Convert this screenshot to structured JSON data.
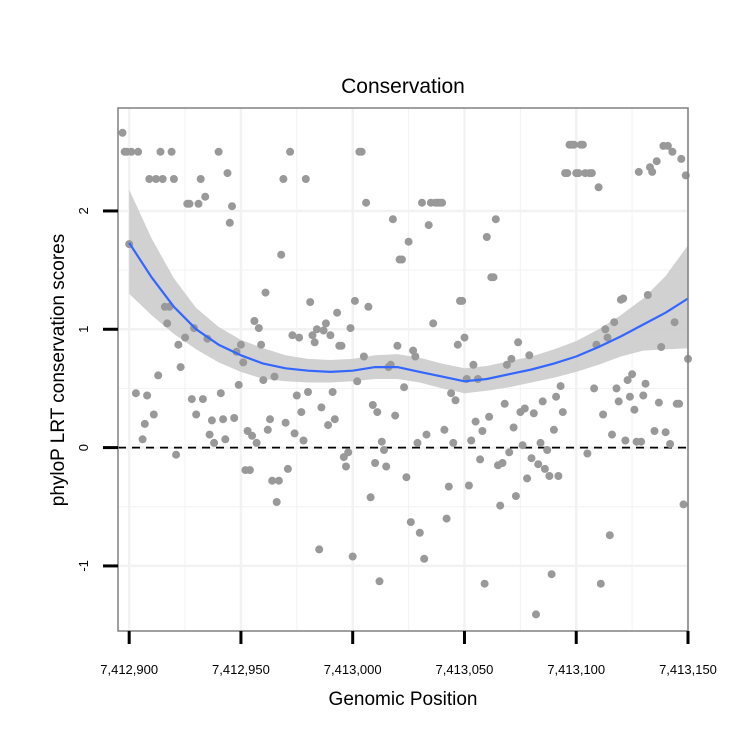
{
  "chart_data": {
    "type": "scatter",
    "title": "Conservation",
    "xlabel": "Genomic Position",
    "ylabel": "phyloP LRT conservation scores",
    "xlim": [
      7412895,
      7413150
    ],
    "ylim": [
      -1.55,
      2.87
    ],
    "x_ticks": [
      7412900,
      7412950,
      7413000,
      7413050,
      7413100,
      7413150
    ],
    "x_tick_labels": [
      "7,412,900",
      "7,412,950",
      "7,413,000",
      "7,413,050",
      "7,413,100",
      "7,413,150"
    ],
    "y_ticks": [
      -1,
      0,
      1,
      2
    ],
    "y_tick_labels": [
      "-1",
      "0",
      "1",
      "2"
    ],
    "grid": true,
    "reference_line": {
      "y": 0,
      "style": "dashed",
      "color": "#000000"
    },
    "colors": {
      "points": "#999999",
      "smooth": "#3366ff",
      "band": "#cccccc",
      "panel_border": "#808080",
      "grid": "#f2f2f2"
    },
    "series": [
      {
        "name": "scores",
        "kind": "points",
        "points": [
          [
            7412897,
            2.66
          ],
          [
            7412898,
            2.5
          ],
          [
            7412899,
            2.5
          ],
          [
            7412900,
            1.72
          ],
          [
            7412901,
            2.5
          ],
          [
            7412903,
            0.46
          ],
          [
            7412904,
            2.5
          ],
          [
            7412906,
            0.07
          ],
          [
            7412907,
            0.2
          ],
          [
            7412908,
            0.44
          ],
          [
            7412909,
            2.27
          ],
          [
            7412911,
            0.28
          ],
          [
            7412912,
            2.27
          ],
          [
            7412913,
            0.61
          ],
          [
            7412914,
            2.5
          ],
          [
            7412915,
            2.27
          ],
          [
            7412916,
            1.19
          ],
          [
            7412917,
            1.05
          ],
          [
            7412918,
            1.19
          ],
          [
            7412919,
            2.5
          ],
          [
            7412920,
            2.27
          ],
          [
            7412921,
            -0.06
          ],
          [
            7412922,
            0.87
          ],
          [
            7412923,
            0.68
          ],
          [
            7412925,
            0.93
          ],
          [
            7412926,
            2.06
          ],
          [
            7412927,
            2.06
          ],
          [
            7412928,
            0.41
          ],
          [
            7412929,
            1.01
          ],
          [
            7412930,
            0.28
          ],
          [
            7412931,
            2.06
          ],
          [
            7412932,
            2.27
          ],
          [
            7412933,
            0.41
          ],
          [
            7412934,
            2.12
          ],
          [
            7412935,
            0.92
          ],
          [
            7412936,
            0.11
          ],
          [
            7412937,
            0.23
          ],
          [
            7412938,
            0.04
          ],
          [
            7412940,
            2.5
          ],
          [
            7412941,
            0.46
          ],
          [
            7412942,
            0.24
          ],
          [
            7412943,
            0.07
          ],
          [
            7412944,
            2.32
          ],
          [
            7412945,
            1.9
          ],
          [
            7412946,
            2.04
          ],
          [
            7412947,
            0.25
          ],
          [
            7412948,
            0.81
          ],
          [
            7412949,
            0.53
          ],
          [
            7412950,
            0.87
          ],
          [
            7412951,
            0.72
          ],
          [
            7412952,
            -0.19
          ],
          [
            7412953,
            0.14
          ],
          [
            7412954,
            -0.19
          ],
          [
            7412955,
            0.1
          ],
          [
            7412956,
            1.07
          ],
          [
            7412957,
            0.04
          ],
          [
            7412958,
            1.01
          ],
          [
            7412959,
            0.87
          ],
          [
            7412960,
            0.57
          ],
          [
            7412961,
            1.31
          ],
          [
            7412962,
            0.15
          ],
          [
            7412963,
            0.24
          ],
          [
            7412964,
            -0.28
          ],
          [
            7412965,
            0.6
          ],
          [
            7412966,
            -0.46
          ],
          [
            7412967,
            -0.28
          ],
          [
            7412968,
            1.63
          ],
          [
            7412969,
            2.27
          ],
          [
            7412970,
            0.21
          ],
          [
            7412971,
            -0.18
          ],
          [
            7412972,
            2.5
          ],
          [
            7412973,
            0.95
          ],
          [
            7412974,
            0.12
          ],
          [
            7412975,
            0.44
          ],
          [
            7412976,
            0.93
          ],
          [
            7412977,
            0.3
          ],
          [
            7412978,
            0.06
          ],
          [
            7412979,
            2.27
          ],
          [
            7412980,
            0.47
          ],
          [
            7412981,
            1.23
          ],
          [
            7412982,
            0.95
          ],
          [
            7412983,
            0.89
          ],
          [
            7412984,
            1.0
          ],
          [
            7412985,
            -0.86
          ],
          [
            7412986,
            0.34
          ],
          [
            7412987,
            0.99
          ],
          [
            7412988,
            1.05
          ],
          [
            7412989,
            0.19
          ],
          [
            7412990,
            0.95
          ],
          [
            7412991,
            0.47
          ],
          [
            7412992,
            0.24
          ],
          [
            7412993,
            1.14
          ],
          [
            7412994,
            0.86
          ],
          [
            7412995,
            0.86
          ],
          [
            7412996,
            -0.08
          ],
          [
            7412997,
            -0.16
          ],
          [
            7412998,
            -0.04
          ],
          [
            7412999,
            1.01
          ],
          [
            7413000,
            -0.92
          ],
          [
            7413001,
            1.24
          ],
          [
            7413002,
            0.56
          ],
          [
            7413003,
            2.5
          ],
          [
            7413004,
            2.5
          ],
          [
            7413005,
            0.77
          ],
          [
            7413006,
            2.07
          ],
          [
            7413007,
            1.19
          ],
          [
            7413008,
            -0.42
          ],
          [
            7413009,
            0.36
          ],
          [
            7413010,
            -0.13
          ],
          [
            7413011,
            0.3
          ],
          [
            7413012,
            -1.13
          ],
          [
            7413013,
            0.05
          ],
          [
            7413014,
            -0.02
          ],
          [
            7413015,
            -0.16
          ],
          [
            7413016,
            0.68
          ],
          [
            7413017,
            0.7
          ],
          [
            7413018,
            1.93
          ],
          [
            7413019,
            0.27
          ],
          [
            7413020,
            0.86
          ],
          [
            7413021,
            1.59
          ],
          [
            7413022,
            1.59
          ],
          [
            7413023,
            0.51
          ],
          [
            7413024,
            -0.25
          ],
          [
            7413025,
            1.74
          ],
          [
            7413026,
            -0.63
          ],
          [
            7413027,
            0.82
          ],
          [
            7413028,
            0.77
          ],
          [
            7413029,
            0.04
          ],
          [
            7413030,
            -0.72
          ],
          [
            7413031,
            2.07
          ],
          [
            7413032,
            -0.94
          ],
          [
            7413033,
            0.11
          ],
          [
            7413034,
            1.88
          ],
          [
            7413035,
            2.07
          ],
          [
            7413036,
            1.05
          ],
          [
            7413037,
            2.07
          ],
          [
            7413038,
            2.07
          ],
          [
            7413039,
            2.07
          ],
          [
            7413040,
            2.07
          ],
          [
            7413041,
            0.15
          ],
          [
            7413042,
            -0.6
          ],
          [
            7413043,
            -0.33
          ],
          [
            7413044,
            0.46
          ],
          [
            7413045,
            0.04
          ],
          [
            7413046,
            0.4
          ],
          [
            7413047,
            0.87
          ],
          [
            7413048,
            1.24
          ],
          [
            7413049,
            1.24
          ],
          [
            7413050,
            0.93
          ],
          [
            7413051,
            0.58
          ],
          [
            7413052,
            -0.32
          ],
          [
            7413053,
            0.06
          ],
          [
            7413054,
            0.7
          ],
          [
            7413055,
            0.22
          ],
          [
            7413056,
            0.58
          ],
          [
            7413057,
            -0.1
          ],
          [
            7413058,
            0.14
          ],
          [
            7413059,
            -1.15
          ],
          [
            7413060,
            1.78
          ],
          [
            7413061,
            0.26
          ],
          [
            7413062,
            1.44
          ],
          [
            7413063,
            1.44
          ],
          [
            7413064,
            1.93
          ],
          [
            7413065,
            -0.15
          ],
          [
            7413066,
            -0.49
          ],
          [
            7413067,
            -0.13
          ],
          [
            7413068,
            0.37
          ],
          [
            7413069,
            0.7
          ],
          [
            7413070,
            -0.04
          ],
          [
            7413071,
            0.75
          ],
          [
            7413072,
            0.17
          ],
          [
            7413073,
            -0.41
          ],
          [
            7413074,
            0.89
          ],
          [
            7413075,
            0.3
          ],
          [
            7413076,
            0.02
          ],
          [
            7413077,
            0.33
          ],
          [
            7413078,
            -0.26
          ],
          [
            7413079,
            0.78
          ],
          [
            7413080,
            -0.09
          ],
          [
            7413081,
            0.29
          ],
          [
            7413082,
            -1.41
          ],
          [
            7413083,
            -0.14
          ],
          [
            7413084,
            0.04
          ],
          [
            7413085,
            0.39
          ],
          [
            7413086,
            -0.18
          ],
          [
            7413087,
            -0.02
          ],
          [
            7413088,
            -0.24
          ],
          [
            7413089,
            -1.07
          ],
          [
            7413090,
            0.15
          ],
          [
            7413091,
            0.43
          ],
          [
            7413092,
            -0.24
          ],
          [
            7413093,
            0.52
          ],
          [
            7413094,
            0.3
          ],
          [
            7413095,
            2.32
          ],
          [
            7413096,
            2.32
          ],
          [
            7413097,
            2.56
          ],
          [
            7413098,
            2.56
          ],
          [
            7413099,
            2.56
          ],
          [
            7413100,
            2.32
          ],
          [
            7413101,
            2.32
          ],
          [
            7413102,
            2.56
          ],
          [
            7413103,
            2.56
          ],
          [
            7413104,
            2.32
          ],
          [
            7413105,
            -0.05
          ],
          [
            7413106,
            2.32
          ],
          [
            7413107,
            2.32
          ],
          [
            7413108,
            0.5
          ],
          [
            7413109,
            0.87
          ],
          [
            7413110,
            2.2
          ],
          [
            7413111,
            -1.15
          ],
          [
            7413112,
            0.28
          ],
          [
            7413113,
            1.0
          ],
          [
            7413114,
            0.93
          ],
          [
            7413115,
            -0.74
          ],
          [
            7413116,
            0.11
          ],
          [
            7413117,
            1.06
          ],
          [
            7413118,
            0.5
          ],
          [
            7413119,
            0.39
          ],
          [
            7413120,
            1.25
          ],
          [
            7413121,
            1.26
          ],
          [
            7413122,
            0.06
          ],
          [
            7413123,
            0.57
          ],
          [
            7413124,
            0.43
          ],
          [
            7413125,
            0.62
          ],
          [
            7413126,
            0.32
          ],
          [
            7413127,
            0.05
          ],
          [
            7413128,
            2.33
          ],
          [
            7413129,
            0.05
          ],
          [
            7413130,
            0.44
          ],
          [
            7413131,
            0.54
          ],
          [
            7413132,
            1.29
          ],
          [
            7413133,
            2.37
          ],
          [
            7413134,
            2.33
          ],
          [
            7413135,
            0.14
          ],
          [
            7413136,
            2.42
          ],
          [
            7413137,
            0.38
          ],
          [
            7413138,
            0.85
          ],
          [
            7413139,
            2.55
          ],
          [
            7413140,
            0.13
          ],
          [
            7413141,
            2.55
          ],
          [
            7413142,
            0.03
          ],
          [
            7413143,
            2.5
          ],
          [
            7413144,
            1.06
          ],
          [
            7413145,
            0.37
          ],
          [
            7413146,
            0.37
          ],
          [
            7413147,
            2.44
          ],
          [
            7413148,
            -0.48
          ],
          [
            7413149,
            2.3
          ],
          [
            7413150,
            0.75
          ]
        ]
      },
      {
        "name": "loess fit",
        "kind": "line",
        "x": [
          7412900,
          7412910,
          7412920,
          7412930,
          7412940,
          7412950,
          7412960,
          7412970,
          7412980,
          7412990,
          7413000,
          7413010,
          7413020,
          7413030,
          7413040,
          7413050,
          7413060,
          7413070,
          7413080,
          7413090,
          7413100,
          7413110,
          7413120,
          7413130,
          7413140,
          7413150
        ],
        "y": [
          1.73,
          1.44,
          1.19,
          1.0,
          0.87,
          0.78,
          0.71,
          0.67,
          0.65,
          0.64,
          0.65,
          0.68,
          0.68,
          0.64,
          0.6,
          0.56,
          0.58,
          0.62,
          0.66,
          0.71,
          0.77,
          0.85,
          0.94,
          1.04,
          1.14,
          1.26
        ],
        "lower": [
          1.3,
          1.12,
          0.96,
          0.83,
          0.72,
          0.64,
          0.58,
          0.56,
          0.55,
          0.55,
          0.56,
          0.58,
          0.58,
          0.55,
          0.5,
          0.46,
          0.48,
          0.51,
          0.55,
          0.59,
          0.64,
          0.7,
          0.77,
          0.82,
          0.83,
          0.84
        ],
        "upper": [
          2.18,
          1.77,
          1.43,
          1.18,
          1.02,
          0.91,
          0.84,
          0.78,
          0.75,
          0.74,
          0.75,
          0.78,
          0.79,
          0.76,
          0.71,
          0.67,
          0.69,
          0.73,
          0.77,
          0.83,
          0.9,
          1.0,
          1.12,
          1.26,
          1.45,
          1.71
        ]
      }
    ]
  }
}
